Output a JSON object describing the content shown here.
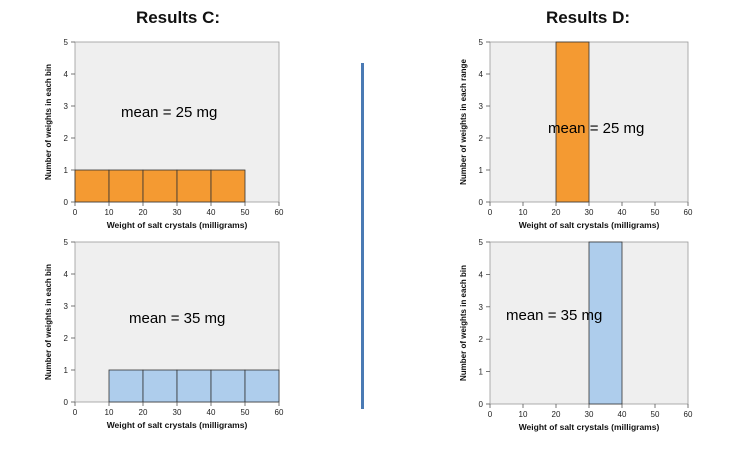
{
  "titles": {
    "c": "Results C:",
    "d": "Results D:"
  },
  "chart_data": [
    {
      "id": "c_top",
      "type": "bar",
      "bins": [
        [
          0,
          10
        ],
        [
          10,
          20
        ],
        [
          20,
          30
        ],
        [
          30,
          40
        ],
        [
          40,
          50
        ]
      ],
      "values": [
        1,
        1,
        1,
        1,
        1
      ],
      "color": "#f49a32",
      "xlabel": "Weight of salt crystals (milligrams)",
      "ylabel": "Number of weights in each bin",
      "xlim": [
        0,
        60
      ],
      "ylim": [
        0,
        5
      ],
      "xticks": [
        0,
        10,
        20,
        30,
        40,
        50,
        60
      ],
      "yticks": [
        0,
        1,
        2,
        3,
        4,
        5
      ],
      "annotation": "mean = 25 mg"
    },
    {
      "id": "c_bottom",
      "type": "bar",
      "bins": [
        [
          10,
          20
        ],
        [
          20,
          30
        ],
        [
          30,
          40
        ],
        [
          40,
          50
        ],
        [
          50,
          60
        ]
      ],
      "values": [
        1,
        1,
        1,
        1,
        1
      ],
      "color": "#aecdec",
      "xlabel": "Weight of salt crystals (milligrams)",
      "ylabel": "Number of weights in each bin",
      "xlim": [
        0,
        60
      ],
      "ylim": [
        0,
        5
      ],
      "xticks": [
        0,
        10,
        20,
        30,
        40,
        50,
        60
      ],
      "yticks": [
        0,
        1,
        2,
        3,
        4,
        5
      ],
      "annotation": "mean = 35 mg"
    },
    {
      "id": "d_top",
      "type": "bar",
      "bins": [
        [
          20,
          30
        ]
      ],
      "values": [
        5
      ],
      "color": "#f49a32",
      "xlabel": "Weight of salt crystals (milligrams)",
      "ylabel": "Number of weights in each range",
      "xlim": [
        0,
        60
      ],
      "ylim": [
        0,
        5
      ],
      "xticks": [
        0,
        10,
        20,
        30,
        40,
        50,
        60
      ],
      "yticks": [
        0,
        1,
        2,
        3,
        4,
        5
      ],
      "annotation": "mean = 25 mg"
    },
    {
      "id": "d_bottom",
      "type": "bar",
      "bins": [
        [
          30,
          40
        ]
      ],
      "values": [
        5
      ],
      "color": "#aecdec",
      "xlabel": "Weight of salt crystals (milligrams)",
      "ylabel": "Number of weights in each bin",
      "xlim": [
        0,
        60
      ],
      "ylim": [
        0,
        5
      ],
      "xticks": [
        0,
        10,
        20,
        30,
        40,
        50,
        60
      ],
      "yticks": [
        0,
        1,
        2,
        3,
        4,
        5
      ],
      "annotation": "mean = 35 mg"
    }
  ]
}
